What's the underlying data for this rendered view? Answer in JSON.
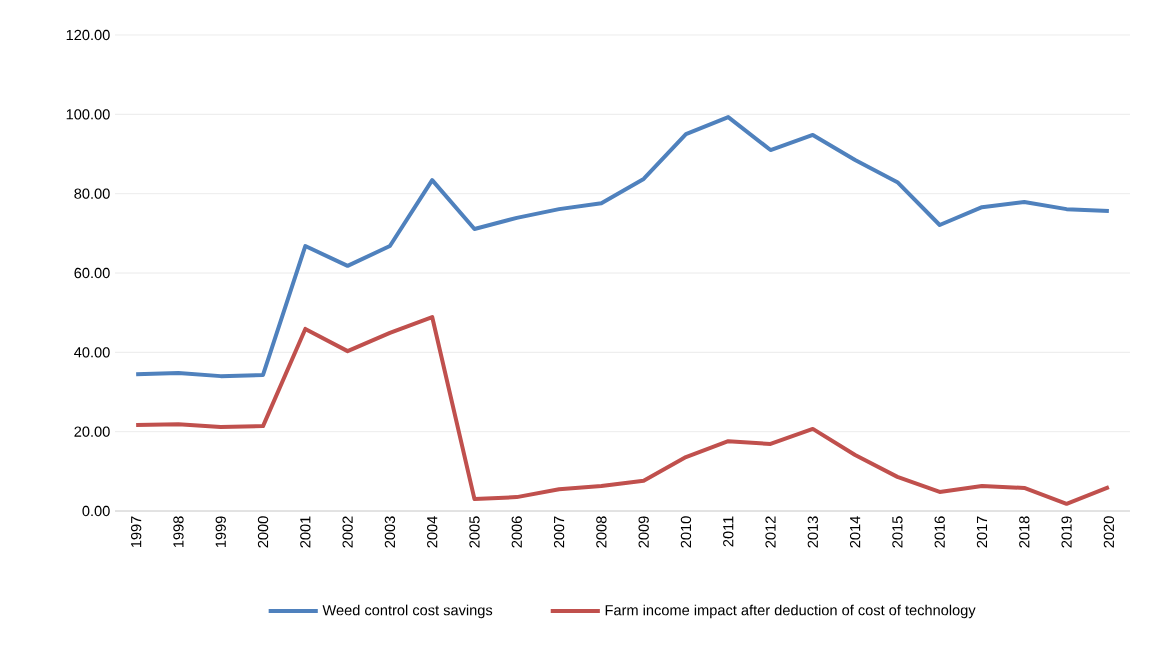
{
  "chart_data": {
    "type": "line",
    "categories": [
      "1997",
      "1998",
      "1999",
      "2000",
      "2001",
      "2002",
      "2003",
      "2004",
      "2005",
      "2006",
      "2007",
      "2008",
      "2009",
      "2010",
      "2011",
      "2012",
      "2013",
      "2014",
      "2015",
      "2016",
      "2017",
      "2018",
      "2019",
      "2020"
    ],
    "series": [
      {
        "name": "Weed control cost savings",
        "color": "#4f81bd",
        "values": [
          34.5,
          34.8,
          34.0,
          34.3,
          66.8,
          61.8,
          66.8,
          83.4,
          71.1,
          73.9,
          76.1,
          77.6,
          83.7,
          95.0,
          99.3,
          91.0,
          94.8,
          88.5,
          82.9,
          72.1,
          76.6,
          77.9,
          76.1,
          75.6
        ]
      },
      {
        "name": "Farm income impact after deduction of cost of technology",
        "color": "#c0504d",
        "values": [
          21.7,
          21.9,
          21.2,
          21.4,
          45.9,
          40.3,
          44.9,
          48.9,
          3.0,
          3.5,
          5.5,
          6.3,
          7.6,
          13.6,
          17.6,
          16.9,
          20.7,
          14.1,
          8.6,
          4.8,
          6.3,
          5.8,
          1.8,
          6.0
        ]
      }
    ],
    "ylim": [
      0,
      120
    ],
    "yticks": [
      {
        "value": 0,
        "label": "0.00"
      },
      {
        "value": 20,
        "label": "20.00"
      },
      {
        "value": 40,
        "label": "40.00"
      },
      {
        "value": 60,
        "label": "60.00"
      },
      {
        "value": 80,
        "label": "80.00"
      },
      {
        "value": 100,
        "label": "100.00"
      },
      {
        "value": 120,
        "label": "120.00"
      }
    ],
    "grid": "y",
    "legend": "bottom"
  }
}
